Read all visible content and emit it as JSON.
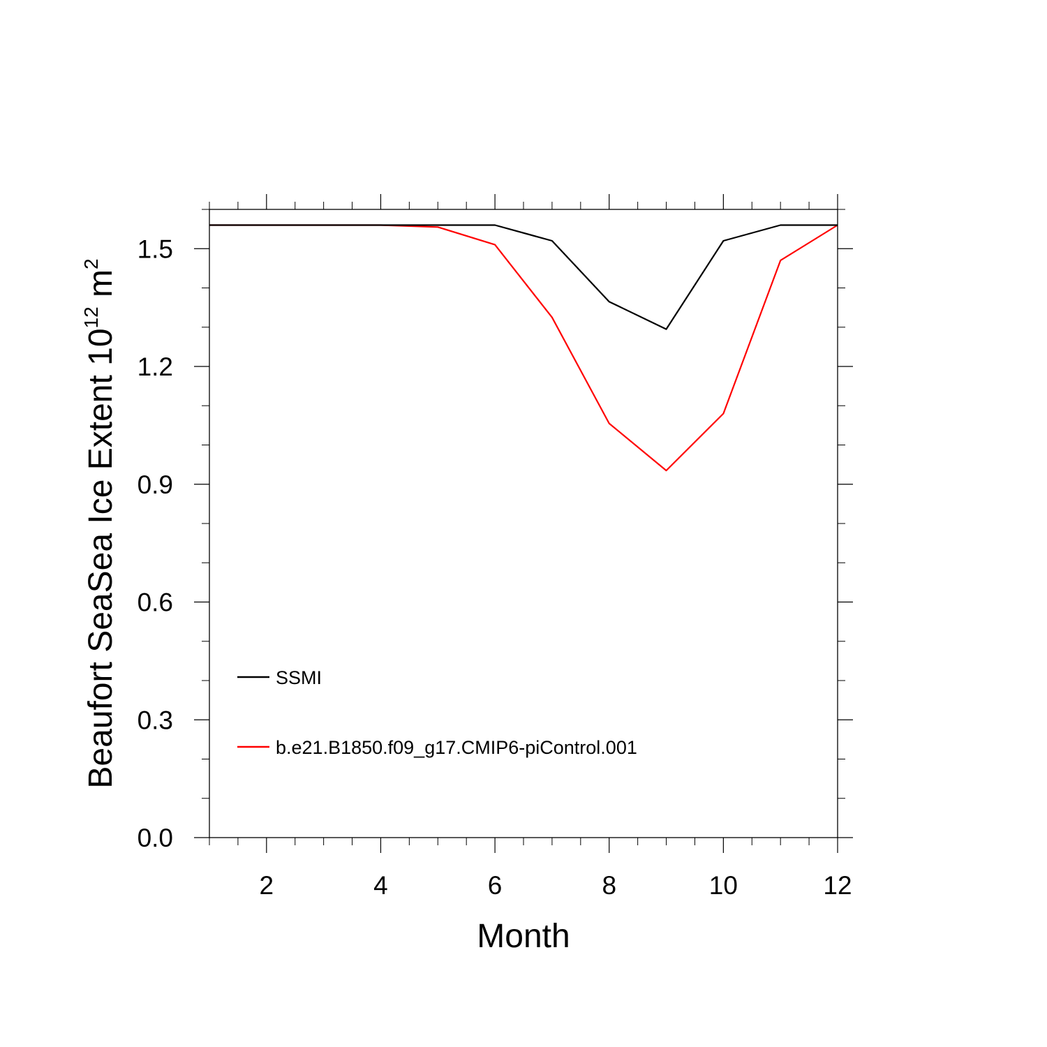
{
  "chart_data": {
    "type": "line",
    "x": [
      1,
      2,
      3,
      4,
      5,
      6,
      7,
      8,
      9,
      10,
      11,
      12
    ],
    "series": [
      {
        "name": "SSMI",
        "color": "#000000",
        "values": [
          1.56,
          1.56,
          1.56,
          1.56,
          1.56,
          1.56,
          1.52,
          1.365,
          1.295,
          1.52,
          1.56,
          1.56
        ]
      },
      {
        "name": "b.e21.B1850.f09_g17.CMIP6-piControl.001",
        "color": "#ff0000",
        "values": [
          1.56,
          1.56,
          1.56,
          1.56,
          1.555,
          1.51,
          1.325,
          1.055,
          0.935,
          1.08,
          1.47,
          1.56
        ]
      }
    ],
    "xlabel": "Month",
    "ylabel_main": "Beaufort SeaSea Ice Extent 10",
    "ylabel_exp1": "12",
    "ylabel_mid": " m",
    "ylabel_exp2": "2",
    "xlim": [
      1,
      12
    ],
    "ylim": [
      0,
      1.6
    ],
    "xticks": [
      2,
      4,
      6,
      8,
      10,
      12
    ],
    "xtick_labels": [
      "2",
      "4",
      "6",
      "8",
      "10",
      "12"
    ],
    "yticks": [
      0,
      0.3,
      0.6,
      0.9,
      1.2,
      1.5
    ],
    "ytick_labels": [
      "0.0",
      "0.3",
      "0.6",
      "0.9",
      "1.2",
      "1.5"
    ],
    "legend_position": "lower-left inside",
    "grid": false
  }
}
